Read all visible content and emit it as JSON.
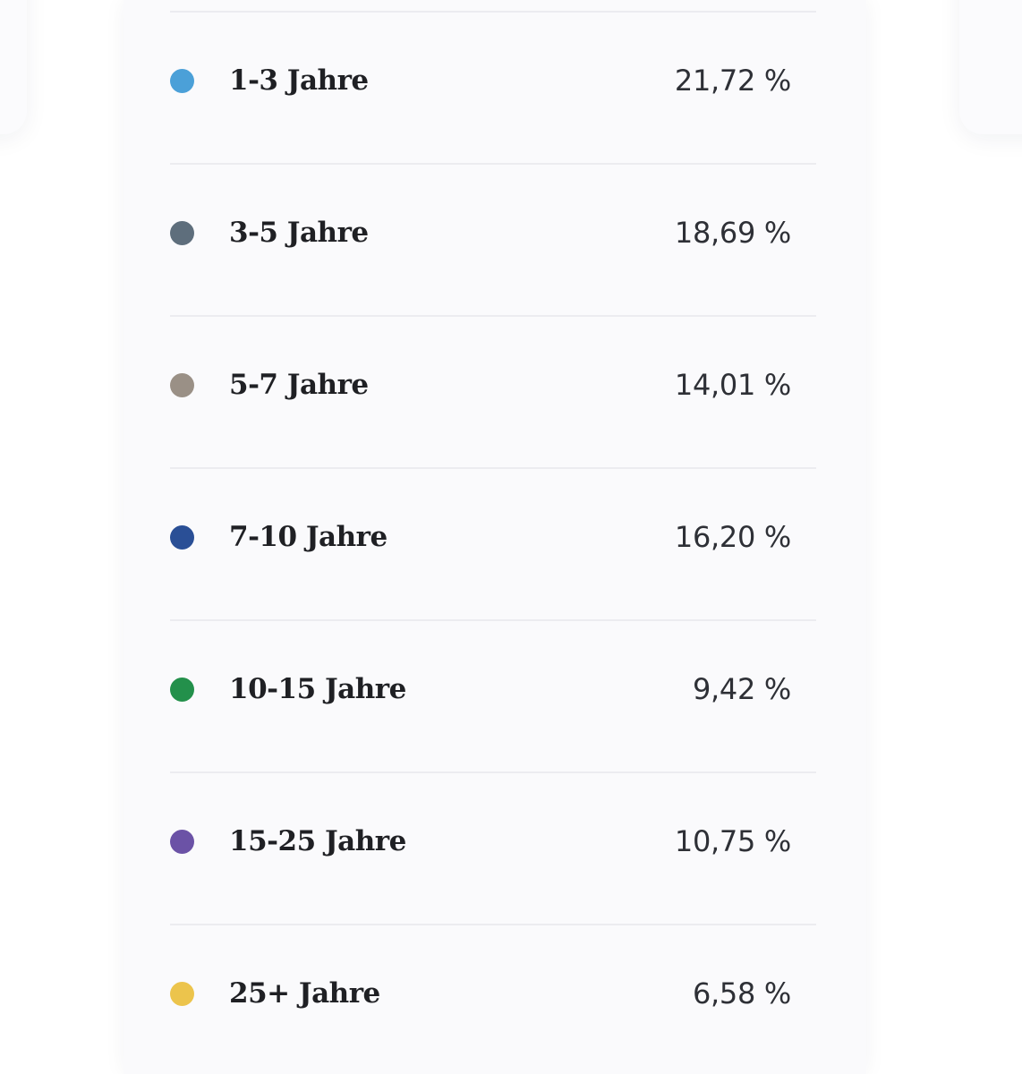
{
  "duration_breakdown": {
    "items": [
      {
        "label": "1-3 Jahre",
        "value": "21,72 %",
        "percent": 21.72,
        "color": "#4ba0d8"
      },
      {
        "label": "3-5 Jahre",
        "value": "18,69 %",
        "percent": 18.69,
        "color": "#5e6e7c"
      },
      {
        "label": "5-7 Jahre",
        "value": "14,01 %",
        "percent": 14.01,
        "color": "#9a9086"
      },
      {
        "label": "7-10 Jahre",
        "value": "16,20 %",
        "percent": 16.2,
        "color": "#2a4f96"
      },
      {
        "label": "10-15 Jahre",
        "value": "9,42 %",
        "percent": 9.42,
        "color": "#23904b"
      },
      {
        "label": "15-25 Jahre",
        "value": "10,75 %",
        "percent": 10.75,
        "color": "#6b52a6"
      },
      {
        "label": "25+ Jahre",
        "value": "6,58 %",
        "percent": 6.58,
        "color": "#ecc44c"
      }
    ]
  }
}
